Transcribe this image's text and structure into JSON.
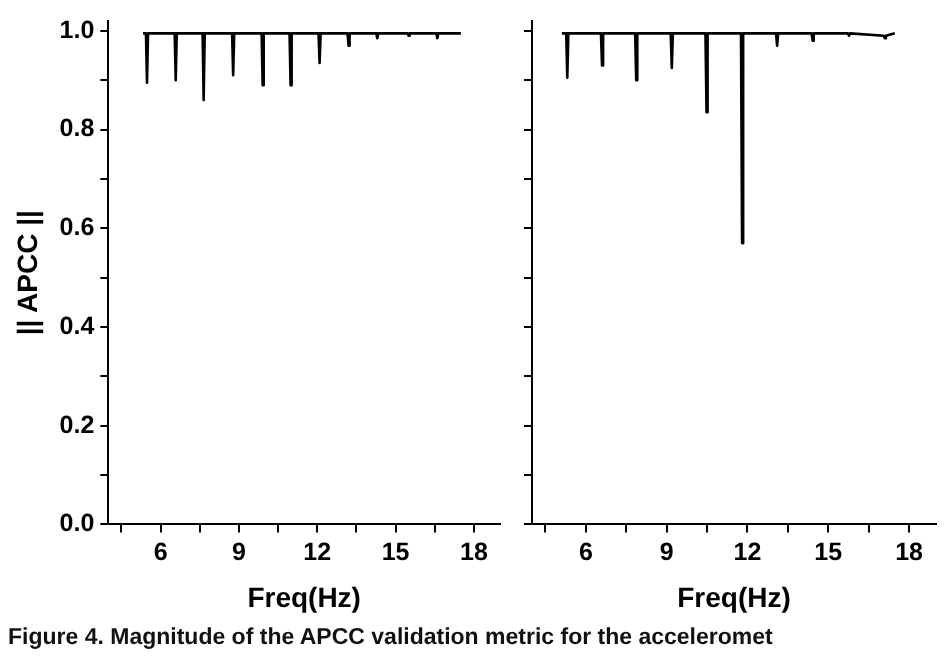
{
  "chart_data": [
    {
      "type": "line",
      "xlabel": "Freq(Hz)",
      "ylabel": "|| APCC ||",
      "xlim": [
        4,
        19
      ],
      "xticks": [
        {
          "value": 4.5,
          "label": null
        },
        6,
        {
          "value": 7.5,
          "label": null
        },
        9,
        {
          "value": 10.5,
          "label": null
        },
        12,
        {
          "value": 13.5,
          "label": null
        },
        15,
        {
          "value": 16.5,
          "label": null
        },
        18
      ],
      "ylim": [
        0,
        1.02
      ],
      "yticks": [
        {
          "value": 0,
          "label": "0.0"
        },
        {
          "value": 0.1,
          "label": null
        },
        0.2,
        {
          "value": 0.3,
          "label": null
        },
        0.4,
        {
          "value": 0.5,
          "label": null
        },
        0.6,
        {
          "value": 0.7,
          "label": null
        },
        0.8,
        {
          "value": 0.9,
          "label": null
        },
        {
          "value": 1,
          "label": "1.0"
        }
      ],
      "series": [
        {
          "color": "#000000",
          "x": [
            5.33,
            5.44,
            5.48,
            5.52,
            6.54,
            6.58,
            6.62,
            7.61,
            7.65,
            7.69,
            8.74,
            8.78,
            8.82,
            9.87,
            9.91,
            9.95,
            10.94,
            10.98,
            11.02,
            12.05,
            12.09,
            12.13,
            13.16,
            13.2,
            13.24,
            14.26,
            14.3,
            14.34,
            15.46,
            15.5,
            15.54,
            16.56,
            16.6,
            16.64,
            17.5
          ],
          "values": [
            0.995,
            0.995,
            0.895,
            0.995,
            0.995,
            0.9,
            0.995,
            0.995,
            0.86,
            0.995,
            0.995,
            0.91,
            0.995,
            0.995,
            0.89,
            0.995,
            0.995,
            0.89,
            0.995,
            0.995,
            0.935,
            0.995,
            0.995,
            0.97,
            0.995,
            0.995,
            0.985,
            0.995,
            0.995,
            0.99,
            0.995,
            0.995,
            0.985,
            0.995,
            0.995
          ]
        }
      ],
      "annotations": [
        "Figure 4. Magnitude of the APCC validation metric for the acceleromet"
      ]
    },
    {
      "type": "line",
      "xlabel": "Freq(Hz)",
      "xlim": [
        4,
        19
      ],
      "xticks": [
        {
          "value": 4.5,
          "label": null
        },
        6,
        {
          "value": 7.5,
          "label": null
        },
        9,
        {
          "value": 10.5,
          "label": null
        },
        12,
        {
          "value": 13.5,
          "label": null
        },
        15,
        {
          "value": 16.5,
          "label": null
        },
        18
      ],
      "ylim": [
        0,
        1.02
      ],
      "yticks": [
        {
          "value": 0,
          "label": null
        },
        {
          "value": 0.1,
          "label": null
        },
        {
          "value": 0.2,
          "label": null
        },
        {
          "value": 0.3,
          "label": null
        },
        {
          "value": 0.4,
          "label": null
        },
        {
          "value": 0.5,
          "label": null
        },
        {
          "value": 0.6,
          "label": null
        },
        {
          "value": 0.7,
          "label": null
        },
        {
          "value": 0.8,
          "label": null
        },
        {
          "value": 0.9,
          "label": null
        },
        {
          "value": 1,
          "label": null
        }
      ],
      "tick_labels": "x",
      "series": [
        {
          "color": "#000000",
          "x": [
            5.11,
            5.27,
            5.31,
            5.35,
            6.56,
            6.6,
            6.64,
            7.83,
            7.87,
            7.91,
            9.15,
            9.19,
            9.23,
            10.44,
            10.48,
            10.52,
            11.76,
            11.8,
            11.84,
            13.06,
            13.1,
            13.14,
            14.38,
            14.42,
            14.46,
            15.73,
            15.77,
            15.81,
            17.06,
            17.1,
            17.14,
            17.47
          ],
          "values": [
            0.995,
            0.995,
            0.905,
            0.995,
            0.995,
            0.93,
            0.995,
            0.995,
            0.9,
            0.995,
            0.995,
            0.925,
            0.995,
            0.995,
            0.835,
            0.995,
            0.995,
            0.57,
            0.995,
            0.995,
            0.97,
            0.995,
            0.995,
            0.98,
            0.995,
            0.995,
            0.99,
            0.995,
            0.99,
            0.985,
            0.99,
            0.995
          ]
        }
      ]
    }
  ]
}
